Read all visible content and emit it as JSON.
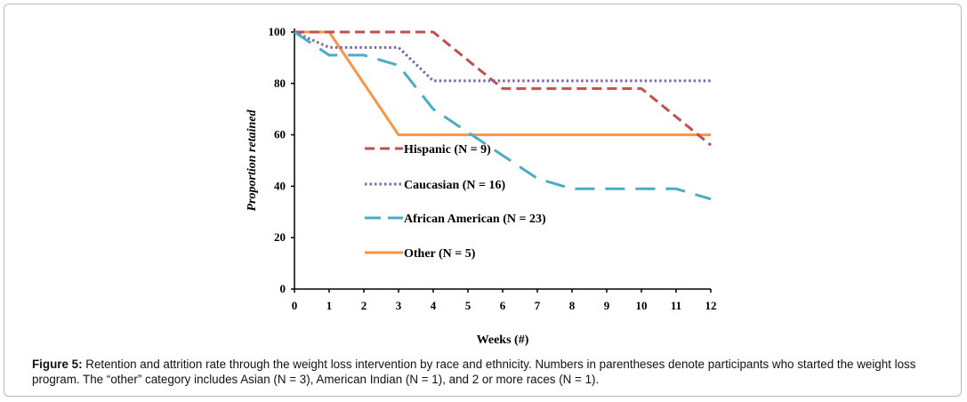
{
  "chart_data": {
    "type": "line",
    "xlabel": "Weeks (#)",
    "ylabel": "Proportion retained",
    "xlim": [
      0,
      12
    ],
    "ylim": [
      0,
      100
    ],
    "x_ticks": [
      "0",
      "1",
      "2",
      "3",
      "4",
      "5",
      "6",
      "7",
      "8",
      "9",
      "10",
      "11",
      "12"
    ],
    "y_ticks": [
      "0",
      "20",
      "40",
      "60",
      "80",
      "100"
    ],
    "grid": false,
    "legend_position": "inside-center",
    "series": [
      {
        "name": "Hispanic (N = 9)",
        "color": "#c0504d",
        "style": "dashed",
        "x": [
          0,
          1,
          2,
          3,
          4,
          5,
          6,
          7,
          8,
          9,
          10,
          11,
          12
        ],
        "y": [
          100,
          100,
          100,
          100,
          100,
          89,
          78,
          78,
          78,
          78,
          78,
          67,
          56
        ]
      },
      {
        "name": "Caucasian (N = 16)",
        "color": "#8064a2",
        "style": "dotted",
        "x": [
          0,
          1,
          2,
          3,
          4,
          5,
          6,
          7,
          8,
          9,
          10,
          11,
          12
        ],
        "y": [
          100,
          94,
          94,
          94,
          81,
          81,
          81,
          81,
          81,
          81,
          81,
          81,
          81
        ]
      },
      {
        "name": "African American (N = 23)",
        "color": "#4bacc6",
        "style": "long-dash",
        "x": [
          0,
          1,
          2,
          3,
          4,
          5,
          6,
          7,
          8,
          9,
          10,
          11,
          12
        ],
        "y": [
          100,
          91,
          91,
          87,
          70,
          61,
          52,
          43,
          39,
          39,
          39,
          39,
          35
        ]
      },
      {
        "name": "Other (N = 5)",
        "color": "#f79646",
        "style": "solid",
        "x": [
          0,
          1,
          2,
          3,
          4,
          5,
          6,
          7,
          8,
          9,
          10,
          11,
          12
        ],
        "y": [
          100,
          100,
          80,
          60,
          60,
          60,
          60,
          60,
          60,
          60,
          60,
          60,
          60
        ]
      }
    ]
  },
  "caption": {
    "label": "Figure 5:",
    "text": " Retention and attrition rate through the weight loss intervention by race and ethnicity. Numbers in parentheses denote participants who started the weight loss program. The “other” category includes Asian (N = 3), American Indian (N = 1), and 2 or more races (N = 1)."
  }
}
